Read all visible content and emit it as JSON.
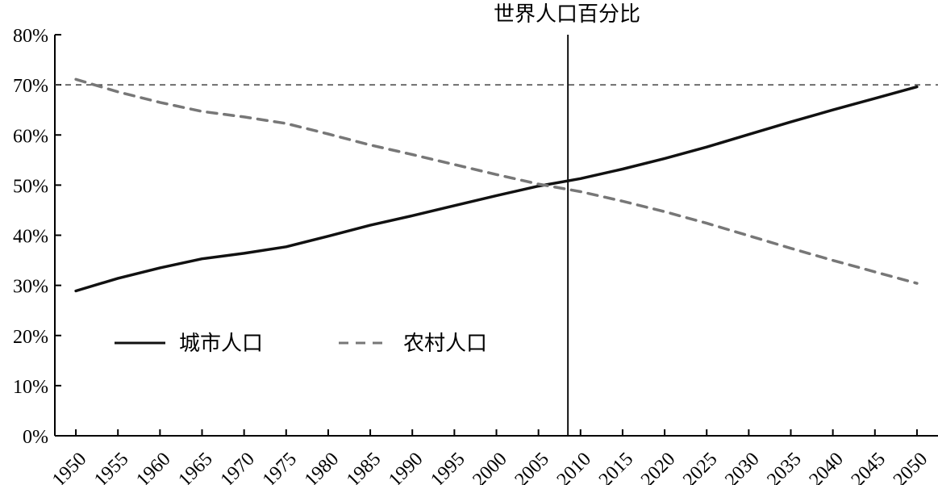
{
  "chart_data": {
    "type": "line",
    "title": "世界人口百分比",
    "xlabel": "",
    "ylabel": "",
    "x": [
      1950,
      1955,
      1960,
      1965,
      1970,
      1975,
      1980,
      1985,
      1990,
      1995,
      2000,
      2005,
      2010,
      2015,
      2020,
      2025,
      2030,
      2035,
      2040,
      2045,
      2050
    ],
    "x_ticks": [
      "1950",
      "1955",
      "1960",
      "1965",
      "1970",
      "1975",
      "1980",
      "1985",
      "1990",
      "1995",
      "2000",
      "2005",
      "2010",
      "2015",
      "2020",
      "2025",
      "2030",
      "2035",
      "2040",
      "2045",
      "2050"
    ],
    "y_ticks": [
      "0%",
      "10%",
      "20%",
      "30%",
      "40%",
      "50%",
      "60%",
      "70%",
      "80%"
    ],
    "xlim": [
      1947.5,
      2052.5
    ],
    "ylim": [
      0,
      80
    ],
    "grid": false,
    "legend_position": "lower-left",
    "reference_lines": [
      {
        "orientation": "horizontal",
        "value": 70,
        "style": "dashed"
      },
      {
        "orientation": "vertical",
        "value": 2008.5,
        "style": "solid"
      }
    ],
    "series": [
      {
        "name": "城市人口",
        "style": "solid",
        "color": "#111111",
        "values": [
          28.9,
          31.4,
          33.5,
          35.3,
          36.4,
          37.7,
          39.8,
          42.0,
          43.9,
          45.9,
          47.9,
          49.8,
          51.3,
          53.2,
          55.3,
          57.6,
          60.1,
          62.6,
          65.0,
          67.3,
          69.6
        ]
      },
      {
        "name": "农村人口",
        "style": "dashed",
        "color": "#777777",
        "values": [
          71.1,
          68.6,
          66.5,
          64.7,
          63.6,
          62.3,
          60.2,
          58.0,
          56.1,
          54.1,
          52.1,
          50.2,
          48.7,
          46.8,
          44.7,
          42.4,
          39.9,
          37.4,
          35.0,
          32.7,
          30.4
        ]
      }
    ]
  }
}
